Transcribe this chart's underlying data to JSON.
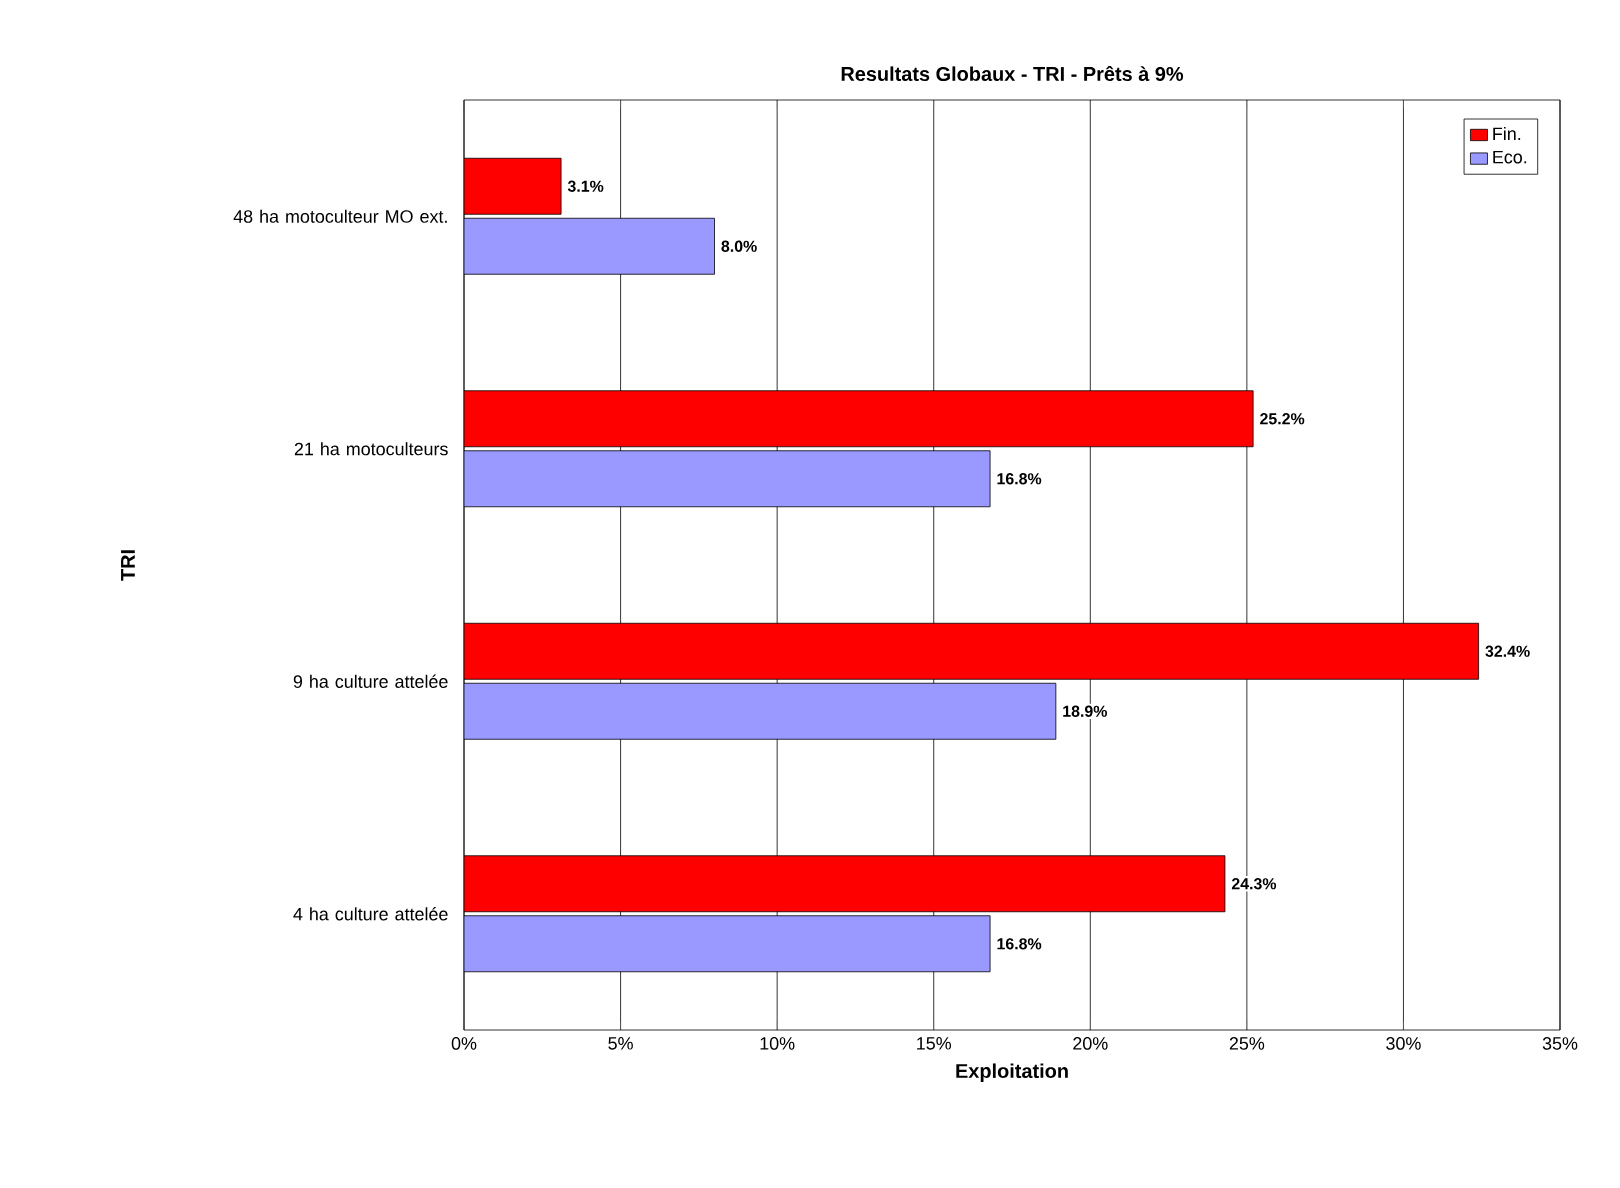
{
  "chart_data": {
    "type": "bar",
    "orientation": "horizontal",
    "title": "Resultats Globaux - TRI - Prêts à 9%",
    "xlabel": "Exploitation",
    "ylabel": "TRI",
    "categories": [
      "48 ha motoculteur MO ext.",
      "21 ha motoculteurs",
      "9 ha culture attelée",
      "4 ha culture attelée"
    ],
    "series": [
      {
        "name": "Fin.",
        "color": "#ff0000",
        "values": [
          3.1,
          25.2,
          32.4,
          24.3
        ],
        "value_labels": [
          "3.1%",
          "25.2%",
          "32.4%",
          "24.3%"
        ]
      },
      {
        "name": "Eco.",
        "color": "#9999ff",
        "values": [
          8.0,
          16.8,
          18.9,
          16.8
        ],
        "value_labels": [
          "8.0%",
          "16.8%",
          "18.9%",
          "16.8%"
        ]
      }
    ],
    "xlim": [
      0,
      35
    ],
    "xticks": [
      {
        "value": 0,
        "label": "0%"
      },
      {
        "value": 5,
        "label": "5%"
      },
      {
        "value": 10,
        "label": "10%"
      },
      {
        "value": 15,
        "label": "15%"
      },
      {
        "value": 20,
        "label": "20%"
      },
      {
        "value": 25,
        "label": "25%"
      },
      {
        "value": 30,
        "label": "30%"
      },
      {
        "value": 35,
        "label": "35%"
      }
    ],
    "grid": "x",
    "legend": "top right"
  }
}
